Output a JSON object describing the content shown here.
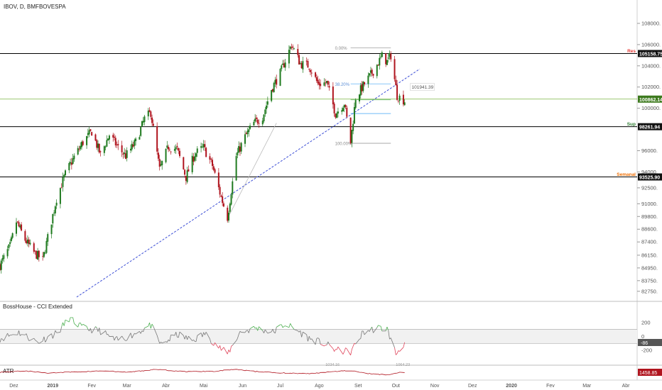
{
  "header": {
    "title": "IBOV, D, BMFBOVESPA"
  },
  "colors": {
    "up": "#1f7a1f",
    "down": "#b0141e",
    "support_line": "#000000",
    "green_line": "#7cb342",
    "trend": "#3d4fd6",
    "cci": "#777777",
    "cci_hi": "#4caf50",
    "cci_lo": "#e0445a",
    "atr": "#b0141e",
    "res_text": "#e53935",
    "sup_text": "#2e7d32",
    "sem_text": "#ef6c00"
  },
  "chart_data": [
    {
      "type": "candlestick",
      "title": "IBOV, D, BMFBOVESPA",
      "x_ticks": [
        "Dez",
        "2019",
        "Fev",
        "Mar",
        "Abr",
        "Mai",
        "Jun",
        "Jul",
        "Ago",
        "Set",
        "Out",
        "Nov",
        "Dez",
        "2020",
        "Fev",
        "Mar",
        "Abr"
      ],
      "y_ticks": [
        108000,
        106000,
        104000,
        102000,
        100000,
        96000,
        94000,
        92500,
        91000,
        89800,
        88600,
        87400,
        86150,
        84950,
        83750,
        82750
      ],
      "y_tick_labels": [
        "108000.",
        "106000.",
        "104000.",
        "102000.",
        "100000.",
        "96000.",
        "94000.",
        "92500.",
        "91000.",
        "89800.",
        "88600.",
        "87400.",
        "86150.",
        "84950.",
        "83750.",
        "82750."
      ],
      "levels": [
        {
          "name": "Res",
          "value": 105158.75,
          "label": "105158.75"
        },
        {
          "name": "",
          "value": 100862.14,
          "label": "100862.14"
        },
        {
          "name": "Sup",
          "value": 98261.94,
          "label": "98261.94"
        },
        {
          "name": "Semanal",
          "value": 93525.9,
          "label": "93525.90"
        }
      ],
      "fib_labels": [
        "0.00%",
        "38.20%",
        "100.00%"
      ],
      "trend_target": "101941.39",
      "x_range": [
        "2018-11-20",
        "2020-04-10"
      ],
      "y_range": [
        82000,
        109000
      ],
      "waypoints": [
        [
          "2018-11-20",
          85200
        ],
        [
          "2018-11-28",
          87000
        ],
        [
          "2018-12-03",
          89300
        ],
        [
          "2018-12-10",
          87600
        ],
        [
          "2018-12-17",
          86400
        ],
        [
          "2018-12-24",
          85700
        ],
        [
          "2018-12-28",
          87800
        ],
        [
          "2019-01-04",
          91500
        ],
        [
          "2019-01-11",
          93800
        ],
        [
          "2019-01-18",
          95400
        ],
        [
          "2019-01-25",
          96800
        ],
        [
          "2019-02-01",
          97800
        ],
        [
          "2019-02-08",
          95600
        ],
        [
          "2019-02-15",
          97500
        ],
        [
          "2019-02-22",
          96300
        ],
        [
          "2019-02-28",
          95500
        ],
        [
          "2019-03-08",
          96800
        ],
        [
          "2019-03-15",
          99000
        ],
        [
          "2019-03-20",
          99600
        ],
        [
          "2019-03-27",
          94200
        ],
        [
          "2019-04-03",
          96400
        ],
        [
          "2019-04-10",
          96100
        ],
        [
          "2019-04-17",
          93500
        ],
        [
          "2019-04-24",
          95700
        ],
        [
          "2019-05-01",
          96300
        ],
        [
          "2019-05-08",
          94600
        ],
        [
          "2019-05-15",
          91600
        ],
        [
          "2019-05-20",
          89700
        ],
        [
          "2019-05-27",
          95500
        ],
        [
          "2019-06-03",
          97300
        ],
        [
          "2019-06-10",
          98600
        ],
        [
          "2019-06-17",
          99200
        ],
        [
          "2019-06-24",
          101800
        ],
        [
          "2019-07-01",
          103300
        ],
        [
          "2019-07-10",
          106000
        ],
        [
          "2019-07-17",
          104200
        ],
        [
          "2019-07-24",
          104000
        ],
        [
          "2019-07-31",
          102300
        ],
        [
          "2019-08-07",
          102400
        ],
        [
          "2019-08-14",
          99500
        ],
        [
          "2019-08-21",
          100500
        ],
        [
          "2019-08-26",
          96800
        ],
        [
          "2019-08-30",
          101000
        ],
        [
          "2019-09-06",
          102300
        ],
        [
          "2019-09-13",
          103500
        ],
        [
          "2019-09-20",
          104900
        ],
        [
          "2019-09-24",
          104400
        ],
        [
          "2019-09-27",
          105000
        ],
        [
          "2019-10-02",
          101200
        ],
        [
          "2019-10-08",
          100700
        ]
      ]
    },
    {
      "type": "line",
      "title": "BossHouse - CCI Extended",
      "y_ticks": [
        200,
        0,
        -200
      ],
      "band": [
        -100,
        100
      ],
      "last_value_label": "-86",
      "y_range": [
        -380,
        370
      ],
      "waypoints": [
        [
          "2018-11-20",
          -30
        ],
        [
          "2018-12-05",
          60
        ],
        [
          "2018-12-20",
          -80
        ],
        [
          "2019-01-05",
          60
        ],
        [
          "2019-01-14",
          260
        ],
        [
          "2019-01-25",
          120
        ],
        [
          "2019-02-08",
          80
        ],
        [
          "2019-02-20",
          -60
        ],
        [
          "2019-03-05",
          20
        ],
        [
          "2019-03-20",
          160
        ],
        [
          "2019-03-28",
          -120
        ],
        [
          "2019-04-10",
          30
        ],
        [
          "2019-04-22",
          -60
        ],
        [
          "2019-05-02",
          40
        ],
        [
          "2019-05-15",
          -180
        ],
        [
          "2019-05-20",
          -250
        ],
        [
          "2019-05-30",
          60
        ],
        [
          "2019-06-12",
          120
        ],
        [
          "2019-06-25",
          60
        ],
        [
          "2019-07-05",
          180
        ],
        [
          "2019-07-15",
          80
        ],
        [
          "2019-07-25",
          -40
        ],
        [
          "2019-08-05",
          -100
        ],
        [
          "2019-08-15",
          -200
        ],
        [
          "2019-08-26",
          -220
        ],
        [
          "2019-09-05",
          60
        ],
        [
          "2019-09-16",
          120
        ],
        [
          "2019-09-24",
          110
        ],
        [
          "2019-10-01",
          -250
        ],
        [
          "2019-10-08",
          -86
        ]
      ]
    },
    {
      "type": "line",
      "title": "ATR",
      "last_value_label": "1458.85",
      "annotations": [
        "1034.16",
        "1064.23"
      ],
      "y_range": [
        700,
        2300
      ],
      "waypoints": [
        [
          "2018-11-20",
          1500
        ],
        [
          "2018-12-10",
          1700
        ],
        [
          "2018-12-28",
          1400
        ],
        [
          "2019-01-20",
          1550
        ],
        [
          "2019-02-10",
          1700
        ],
        [
          "2019-03-01",
          1500
        ],
        [
          "2019-03-25",
          1900
        ],
        [
          "2019-04-15",
          1600
        ],
        [
          "2019-05-10",
          1650
        ],
        [
          "2019-05-25",
          1900
        ],
        [
          "2019-06-15",
          1550
        ],
        [
          "2019-07-05",
          1400
        ],
        [
          "2019-07-25",
          1300
        ],
        [
          "2019-08-10",
          1600
        ],
        [
          "2019-08-25",
          1750
        ],
        [
          "2019-09-10",
          1300
        ],
        [
          "2019-09-25",
          1150
        ],
        [
          "2019-10-03",
          1450
        ],
        [
          "2019-10-08",
          1458.85
        ]
      ]
    }
  ]
}
